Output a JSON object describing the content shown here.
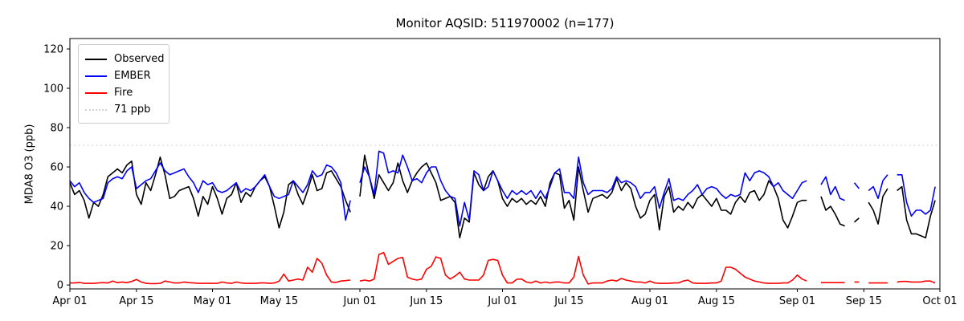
{
  "title": "Monitor AQSID: 511970002 (n=177)",
  "y_axis_label": "MDA8 O3 (ppb)",
  "legend": {
    "position": "upper left",
    "items": [
      {
        "label": "Observed",
        "color": "#000000",
        "style": "solid"
      },
      {
        "label": "EMBER",
        "color": "#0000ff",
        "style": "solid"
      },
      {
        "label": "Fire",
        "color": "#ff0000",
        "style": "solid"
      },
      {
        "label": "71 ppb",
        "color": "#d3d3d3",
        "style": "dotted"
      }
    ]
  },
  "chart_data": {
    "type": "line",
    "title": "Monitor AQSID: 511970002 (n=177)",
    "xlabel": "",
    "ylabel": "MDA8 O3 (ppb)",
    "grid": false,
    "legend_position": "upper left",
    "ylim": [
      -2,
      125.3
    ],
    "y_ticks": [
      0,
      20,
      40,
      60,
      80,
      100,
      120
    ],
    "x_range_days": 183,
    "x_ticks": [
      {
        "label": "Apr 01",
        "day": 0
      },
      {
        "label": "Apr 15",
        "day": 14
      },
      {
        "label": "May 01",
        "day": 30
      },
      {
        "label": "May 15",
        "day": 44
      },
      {
        "label": "Jun 01",
        "day": 61
      },
      {
        "label": "Jun 15",
        "day": 75
      },
      {
        "label": "Jul 01",
        "day": 91
      },
      {
        "label": "Jul 15",
        "day": 105
      },
      {
        "label": "Aug 01",
        "day": 122
      },
      {
        "label": "Aug 15",
        "day": 136
      },
      {
        "label": "Sep 01",
        "day": 153
      },
      {
        "label": "Sep 15",
        "day": 167
      },
      {
        "label": "Oct 01",
        "day": 183
      }
    ],
    "threshold_line": {
      "value": 71,
      "label": "71 ppb",
      "color": "#d3d3d3",
      "style": "dotted"
    },
    "x_start": "Apr 01",
    "x_end": "Sep 30",
    "note_null_means": "missing day (n=177 of 183)",
    "series": [
      {
        "name": "Observed",
        "color": "#000000",
        "values": [
          52,
          46,
          48,
          43,
          34,
          42,
          40,
          46,
          55,
          57,
          59,
          57,
          61,
          63,
          46,
          41,
          52,
          48,
          56,
          65,
          56,
          44,
          45,
          48,
          49,
          50,
          44,
          35,
          45,
          41,
          50,
          44,
          36,
          44,
          46,
          52,
          42,
          47,
          45,
          50,
          53,
          55,
          50,
          40,
          29,
          37,
          51,
          53,
          46,
          41,
          48,
          56,
          48,
          49,
          57,
          58,
          54,
          50,
          43,
          37,
          null,
          45,
          66,
          55,
          44,
          56,
          52,
          48,
          52,
          62,
          53,
          47,
          53,
          57,
          60,
          62,
          57,
          52,
          43,
          44,
          45,
          42,
          24,
          34,
          32,
          57,
          51,
          48,
          55,
          58,
          53,
          44,
          40,
          44,
          42,
          44,
          41,
          43,
          41,
          45,
          40,
          52,
          57,
          56,
          39,
          43,
          33,
          60,
          48,
          37,
          44,
          45,
          46,
          44,
          47,
          54,
          48,
          52,
          49,
          40,
          34,
          36,
          43,
          46,
          28,
          45,
          50,
          37,
          40,
          38,
          42,
          39,
          44,
          46,
          43,
          40,
          44,
          38,
          38,
          36,
          42,
          45,
          42,
          47,
          48,
          43,
          46,
          53,
          50,
          44,
          33,
          29,
          35,
          42,
          43,
          43,
          null,
          null,
          45,
          38,
          40,
          36,
          31,
          30,
          null,
          32,
          34,
          null,
          42,
          38,
          31,
          45,
          49,
          null,
          48,
          50,
          33,
          26,
          26,
          25,
          24,
          35,
          43
        ]
      },
      {
        "name": "EMBER",
        "color": "#0000ff",
        "values": [
          53,
          50,
          52,
          47,
          44,
          42,
          43,
          44,
          52,
          54,
          55,
          54,
          58,
          60,
          49,
          51,
          53,
          54,
          58,
          62,
          58,
          56,
          57,
          58,
          59,
          55,
          52,
          47,
          53,
          51,
          52,
          48,
          47,
          48,
          50,
          52,
          47,
          49,
          48,
          50,
          53,
          56,
          50,
          45,
          44,
          45,
          46,
          53,
          50,
          47,
          51,
          58,
          55,
          56,
          61,
          60,
          57,
          52,
          33,
          43,
          null,
          52,
          60,
          55,
          46,
          68,
          67,
          57,
          58,
          57,
          66,
          60,
          53,
          54,
          52,
          57,
          60,
          60,
          53,
          48,
          45,
          44,
          30,
          42,
          33,
          58,
          56,
          48,
          50,
          58,
          53,
          48,
          44,
          48,
          46,
          48,
          46,
          48,
          44,
          48,
          44,
          50,
          57,
          59,
          47,
          47,
          44,
          65,
          52,
          46,
          48,
          48,
          48,
          47,
          49,
          55,
          52,
          53,
          52,
          50,
          44,
          47,
          47,
          50,
          39,
          47,
          54,
          43,
          44,
          43,
          46,
          48,
          51,
          46,
          49,
          50,
          49,
          46,
          44,
          46,
          45,
          46,
          57,
          53,
          57,
          58,
          57,
          55,
          50,
          52,
          48,
          46,
          44,
          48,
          52,
          53,
          null,
          null,
          51,
          55,
          46,
          50,
          44,
          43,
          null,
          52,
          49,
          null,
          48,
          50,
          44,
          53,
          56,
          null,
          56,
          56,
          42,
          35,
          38,
          38,
          36,
          38,
          50
        ]
      },
      {
        "name": "Fire",
        "color": "#ff0000",
        "values": [
          1,
          1,
          1.3,
          0.8,
          0.8,
          0.8,
          1,
          1.2,
          1,
          2,
          1.2,
          1.5,
          1.2,
          1.8,
          2.8,
          1.5,
          0.8,
          0.7,
          0.7,
          0.8,
          2,
          1.5,
          1,
          1,
          1.5,
          1.2,
          1,
          0.8,
          0.8,
          0.8,
          0.8,
          0.8,
          1.5,
          1,
          0.8,
          1.5,
          1,
          0.8,
          0.8,
          0.8,
          1,
          1,
          0.8,
          1,
          1.9,
          5.5,
          2,
          2.5,
          3,
          2.5,
          9,
          6.5,
          13.5,
          11,
          5,
          1.5,
          1.3,
          2,
          2.2,
          2.5,
          null,
          2,
          2.5,
          2,
          3,
          15.5,
          16.5,
          10.5,
          12,
          13.5,
          14,
          4,
          3,
          2.5,
          3,
          8,
          9.5,
          14.3,
          13.5,
          5,
          3,
          4.5,
          6.5,
          3,
          2.5,
          2.5,
          2.5,
          5,
          12.5,
          13,
          12.5,
          5,
          1,
          1,
          2.9,
          3,
          1.5,
          1,
          2,
          1,
          1.5,
          1,
          1.5,
          1.5,
          1,
          1,
          4,
          14.5,
          5,
          0.5,
          1,
          1,
          1,
          2,
          2.5,
          2,
          3.3,
          2.5,
          2,
          1.5,
          1.5,
          1,
          2,
          1,
          0.8,
          0.8,
          0.8,
          1,
          1,
          2,
          2.5,
          1,
          0.8,
          0.8,
          0.8,
          1,
          1,
          2,
          9,
          9,
          8,
          6,
          4,
          3,
          2,
          1.5,
          1,
          0.8,
          0.8,
          0.8,
          1,
          1,
          2.5,
          5,
          3,
          2,
          null,
          null,
          1.2,
          1.2,
          1.2,
          1.2,
          1.2,
          1.2,
          null,
          1.5,
          1.5,
          null,
          1,
          1,
          1,
          1,
          1,
          null,
          1.5,
          1.8,
          1.8,
          1.5,
          1.5,
          1.5,
          2,
          2,
          1
        ]
      }
    ]
  }
}
